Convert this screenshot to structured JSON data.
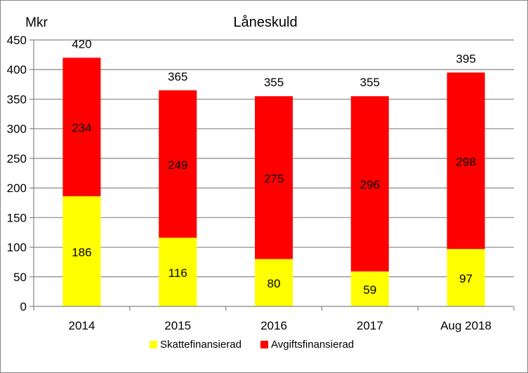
{
  "chart_data": {
    "type": "bar",
    "stacked": true,
    "title": "Låneskuld",
    "ylabel": "Mkr",
    "xlabel": "",
    "categories": [
      "2014",
      "2015",
      "2016",
      "2017",
      "Aug 2018"
    ],
    "series": [
      {
        "name": "Skattefinansierad",
        "values": [
          186,
          116,
          80,
          59,
          97
        ]
      },
      {
        "name": "Avgiftsfinansierad",
        "values": [
          234,
          249,
          275,
          296,
          298
        ]
      }
    ],
    "totals": [
      420,
      365,
      355,
      355,
      395
    ],
    "ylim": [
      0,
      450
    ],
    "yticks": [
      0,
      50,
      100,
      150,
      200,
      250,
      300,
      350,
      400,
      450
    ],
    "grid": true,
    "legend_position": "bottom",
    "colors": {
      "Skattefinansierad": "#ffff00",
      "Avgiftsfinansierad": "#ff0000",
      "gridline": "#878787",
      "axis": "#878787",
      "frame": "#868686"
    }
  }
}
